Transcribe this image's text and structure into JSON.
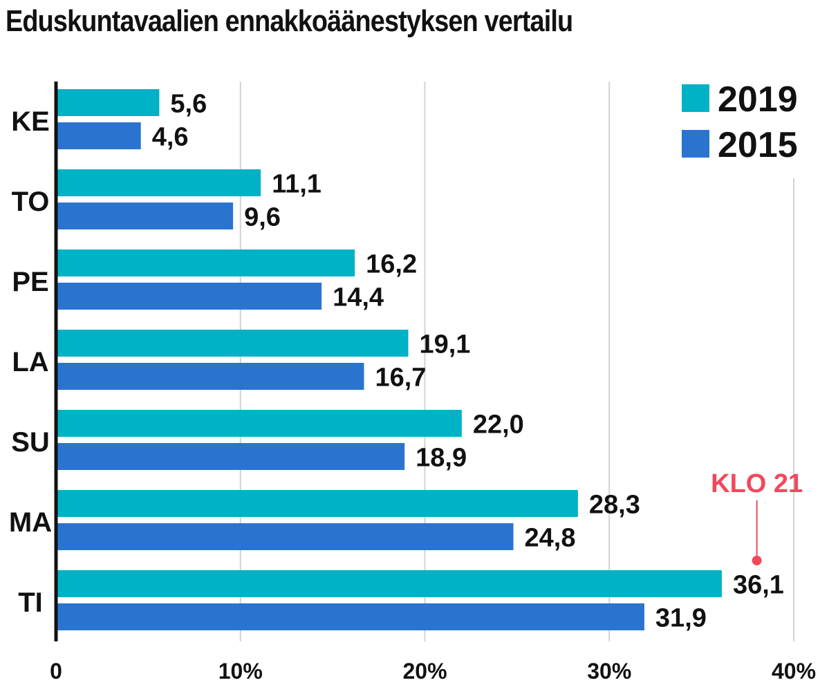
{
  "chart_data": {
    "type": "bar",
    "orientation": "horizontal",
    "title": "Eduskuntavaalien ennakkoäänestyksen vertailu",
    "categories": [
      "KE",
      "TO",
      "PE",
      "LA",
      "SU",
      "MA",
      "TI"
    ],
    "series": [
      {
        "name": "2019",
        "color": "#00B2C6",
        "values": [
          5.6,
          11.1,
          16.2,
          19.1,
          22.0,
          28.3,
          36.1
        ],
        "labels": [
          "5,6",
          "11,1",
          "16,2",
          "19,1",
          "22,0",
          "28,3",
          "36,1"
        ]
      },
      {
        "name": "2015",
        "color": "#2A74D0",
        "values": [
          4.6,
          9.6,
          14.4,
          16.7,
          18.9,
          24.8,
          31.9
        ],
        "labels": [
          "4,6",
          "9,6",
          "14,4",
          "16,7",
          "18,9",
          "24,8",
          "31,9"
        ]
      }
    ],
    "xlim": [
      0,
      40
    ],
    "xticks": [
      {
        "value": 0,
        "label": "0"
      },
      {
        "value": 10,
        "label": "10%"
      },
      {
        "value": 20,
        "label": "20%"
      },
      {
        "value": 30,
        "label": "30%"
      },
      {
        "value": 40,
        "label": "40%"
      }
    ],
    "grid": true,
    "legend_position": "top-right",
    "annotation": {
      "text": "KLO 21",
      "x": 38,
      "category": "TI",
      "color": "#F2485A"
    }
  }
}
